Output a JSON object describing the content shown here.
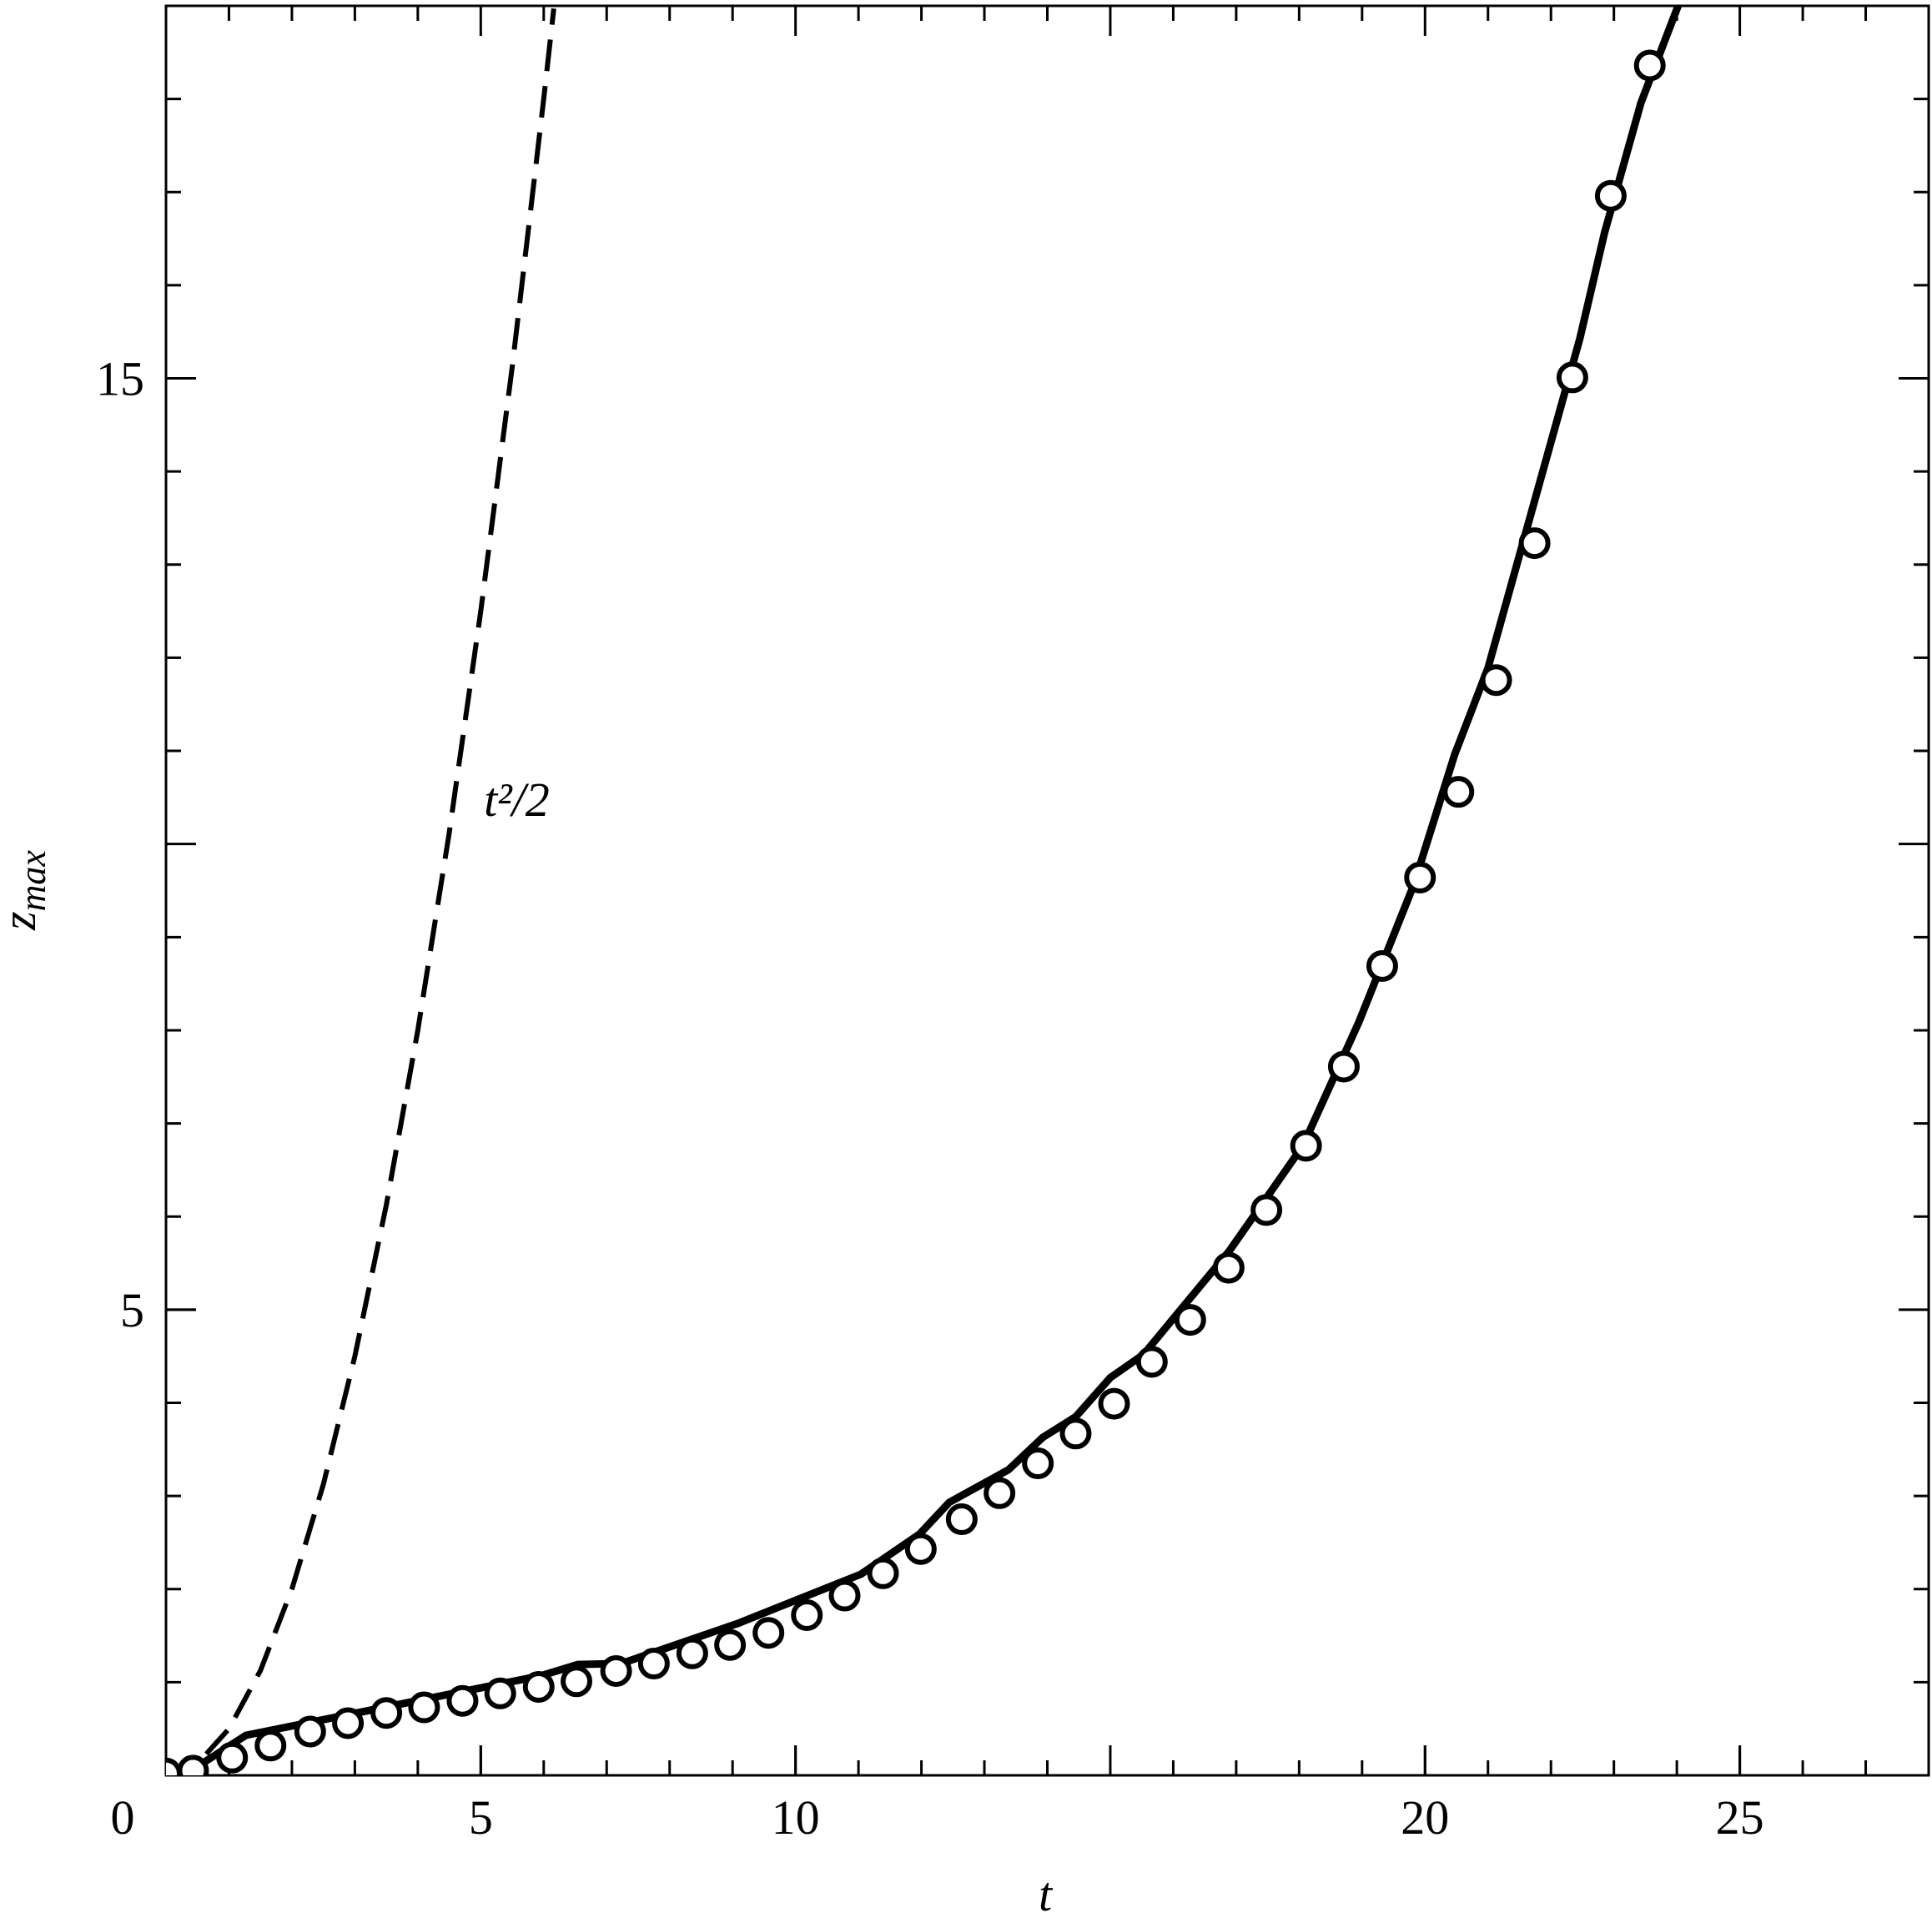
{
  "chart_data": {
    "type": "line",
    "xlabel": "t",
    "ylabel": {
      "text": "z",
      "subscript": "max"
    },
    "annotation": {
      "text": "t²/2",
      "x": 5.05,
      "y": 10.3
    },
    "xlim": [
      0,
      28
    ],
    "xticks": [
      0,
      5,
      10,
      20,
      25
    ],
    "xminor_step": 1,
    "ylim": [
      0,
      19
    ],
    "yticks": [
      5,
      15
    ],
    "yminor_step": 1,
    "series": [
      {
        "name": "t²/2",
        "style": "dashed",
        "color": "#000000",
        "x": [
          0,
          0.5,
          1,
          1.5,
          2,
          2.5,
          3,
          3.5,
          4,
          4.5,
          5,
          5.5,
          6,
          6.16
        ],
        "values": [
          0,
          0.125,
          0.5,
          1.125,
          2,
          3.125,
          4.5,
          6.125,
          8,
          10.125,
          12.5,
          15.125,
          18,
          18.97
        ]
      },
      {
        "name": "solid",
        "style": "solid",
        "color": "#000000",
        "x": [
          0,
          0.49,
          1.27,
          5.96,
          6.54,
          7.23,
          9.08,
          11.04,
          11.97,
          12.44,
          13.38,
          13.93,
          14.45,
          15.0,
          15.53,
          16.89,
          18.06,
          18.95,
          19.82,
          20.47,
          21.0,
          22.46,
          22.85,
          23.43,
          24.06
        ],
        "values": [
          0,
          0.09,
          0.43,
          1.07,
          1.19,
          1.2,
          1.63,
          2.16,
          2.59,
          2.93,
          3.28,
          3.63,
          3.85,
          4.27,
          4.52,
          5.63,
          6.76,
          8.09,
          9.56,
          10.96,
          11.89,
          15.43,
          16.56,
          17.96,
          19.07
        ]
      },
      {
        "name": "circles",
        "style": "markers",
        "color": "#000000",
        "x": [
          0,
          0.43,
          1.05,
          1.66,
          2.29,
          2.89,
          3.5,
          4.1,
          4.71,
          5.31,
          5.92,
          6.52,
          7.15,
          7.75,
          8.36,
          8.96,
          9.57,
          10.18,
          10.78,
          11.39,
          11.99,
          12.64,
          13.24,
          13.85,
          14.45,
          15.06,
          15.66,
          16.27,
          16.88,
          17.48,
          18.11,
          18.71,
          19.32,
          19.92,
          20.53,
          21.13,
          21.74,
          22.34,
          22.95,
          23.57
        ],
        "values": [
          0.02,
          0.05,
          0.19,
          0.32,
          0.47,
          0.56,
          0.67,
          0.73,
          0.8,
          0.88,
          0.95,
          1.01,
          1.12,
          1.2,
          1.31,
          1.4,
          1.53,
          1.72,
          1.93,
          2.17,
          2.43,
          2.75,
          3.03,
          3.35,
          3.67,
          3.99,
          4.44,
          4.89,
          5.45,
          6.07,
          6.76,
          7.61,
          8.69,
          9.64,
          10.56,
          11.76,
          13.23,
          15.01,
          16.96,
          18.36
        ]
      }
    ]
  }
}
